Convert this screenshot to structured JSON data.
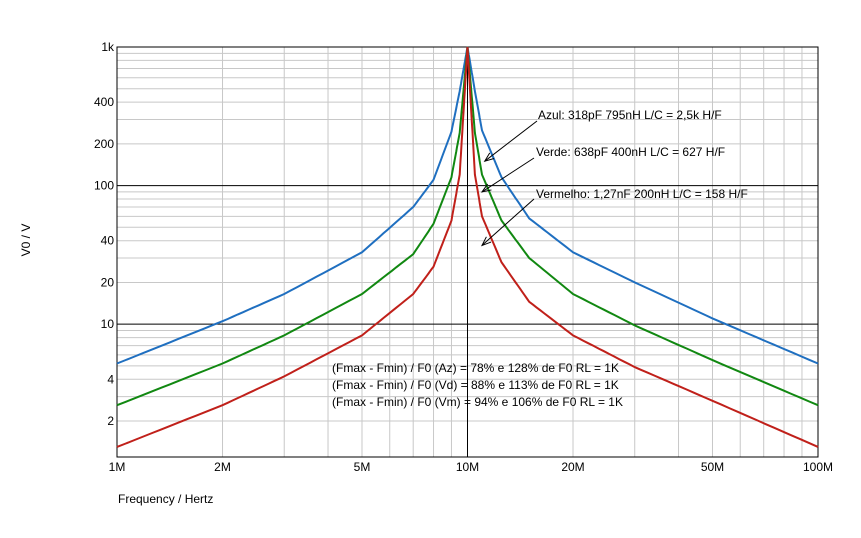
{
  "chart_data": {
    "type": "line",
    "xlabel": "Frequency / Hertz",
    "ylabel": "V0 / V",
    "x_scale": "log",
    "y_scale": "log",
    "xlim": [
      1000000,
      100000000
    ],
    "ylim": [
      1.1,
      1000
    ],
    "x_ticks": [
      {
        "value": 1000000,
        "label": "1M"
      },
      {
        "value": 2000000,
        "label": "2M"
      },
      {
        "value": 5000000,
        "label": "5M"
      },
      {
        "value": 10000000,
        "label": "10M"
      },
      {
        "value": 20000000,
        "label": "20M"
      },
      {
        "value": 50000000,
        "label": "50M"
      },
      {
        "value": 100000000,
        "label": "100M"
      }
    ],
    "y_ticks": [
      {
        "value": 1000,
        "label": "1k"
      },
      {
        "value": 400,
        "label": "400"
      },
      {
        "value": 200,
        "label": "200"
      },
      {
        "value": 100,
        "label": "100"
      },
      {
        "value": 40,
        "label": "40"
      },
      {
        "value": 20,
        "label": "20"
      },
      {
        "value": 10,
        "label": "10"
      },
      {
        "value": 4,
        "label": "4"
      },
      {
        "value": 2,
        "label": "2"
      }
    ],
    "grid": true,
    "series": [
      {
        "color": "#1f6fc0",
        "x": [
          1000000,
          2000000,
          3000000,
          5000000,
          7000000,
          8000000,
          9000000,
          9500000,
          10000000,
          10500000,
          11000000,
          12500000,
          15000000,
          20000000,
          30000000,
          50000000,
          100000000
        ],
        "values": [
          5.2,
          10.5,
          16.5,
          33,
          70,
          110,
          245,
          480,
          1000,
          480,
          250,
          115,
          58,
          33,
          20,
          11,
          5.2
        ]
      },
      {
        "color": "#118811",
        "x": [
          1000000,
          2000000,
          3000000,
          5000000,
          7000000,
          8000000,
          9000000,
          9500000,
          10000000,
          10500000,
          11000000,
          12500000,
          15000000,
          20000000,
          30000000,
          50000000,
          100000000
        ],
        "values": [
          2.6,
          5.2,
          8.3,
          16.5,
          32,
          53,
          115,
          240,
          1000,
          240,
          120,
          56,
          30,
          16.5,
          9.8,
          5.5,
          2.6
        ]
      },
      {
        "color": "#c0201a",
        "x": [
          1000000,
          2000000,
          3000000,
          5000000,
          7000000,
          8000000,
          9000000,
          9500000,
          10000000,
          10500000,
          11000000,
          12500000,
          15000000,
          20000000,
          30000000,
          50000000,
          100000000
        ],
        "values": [
          1.3,
          2.6,
          4.2,
          8.3,
          16.5,
          26,
          56,
          120,
          1000,
          120,
          60,
          28,
          14.5,
          8.3,
          4.9,
          2.8,
          1.3
        ]
      }
    ],
    "annotations": [
      {
        "text": "Azul: 318pF 795nH  L/C = 2,5k H/F",
        "arrow_to": [
          11200000,
          150
        ]
      },
      {
        "text": "Verde: 638pF 400nH  L/C = 627 H/F",
        "arrow_to": [
          11000000,
          90
        ]
      },
      {
        "text": "Vermelho: 1,27nF 200nH  L/C = 158 H/F",
        "arrow_to": [
          11000000,
          37
        ]
      }
    ],
    "notes": [
      "(Fmax - Fmin) / F0 (Az) = 78% e 128% de F0 RL = 1K",
      "(Fmax - Fmin) / F0 (Vd) = 88% e 113% de F0 RL = 1K",
      "(Fmax - Fmin) / F0 (Vm) = 94% e 106% de F0 RL = 1K"
    ]
  }
}
